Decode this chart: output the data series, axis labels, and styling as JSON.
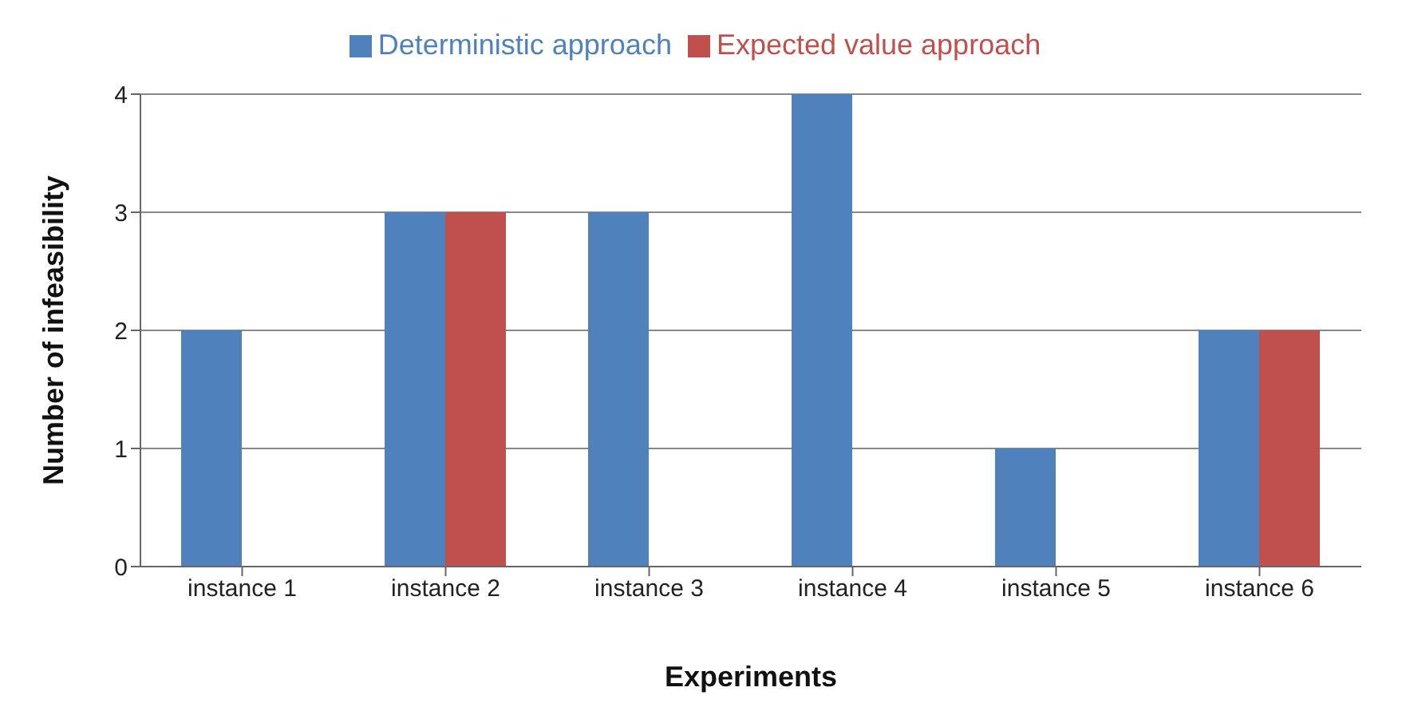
{
  "chart_data": {
    "type": "bar",
    "xlabel": "Experiments",
    "ylabel": "Number of infeasibility",
    "categories": [
      "instance 1",
      "instance 2",
      "instance 3",
      "instance 4",
      "instance 5",
      "instance 6"
    ],
    "series": [
      {
        "name": "Deterministic approach",
        "color": "#4f81bd",
        "values": [
          2,
          3,
          3,
          4,
          1,
          2
        ]
      },
      {
        "name": "Expected value approach",
        "color": "#c0504d",
        "values": [
          0,
          3,
          0,
          0,
          0,
          2
        ]
      }
    ],
    "ylim": [
      0,
      4
    ],
    "yticks": [
      0,
      1,
      2,
      3,
      4
    ],
    "grid": "y",
    "legend": "top"
  }
}
